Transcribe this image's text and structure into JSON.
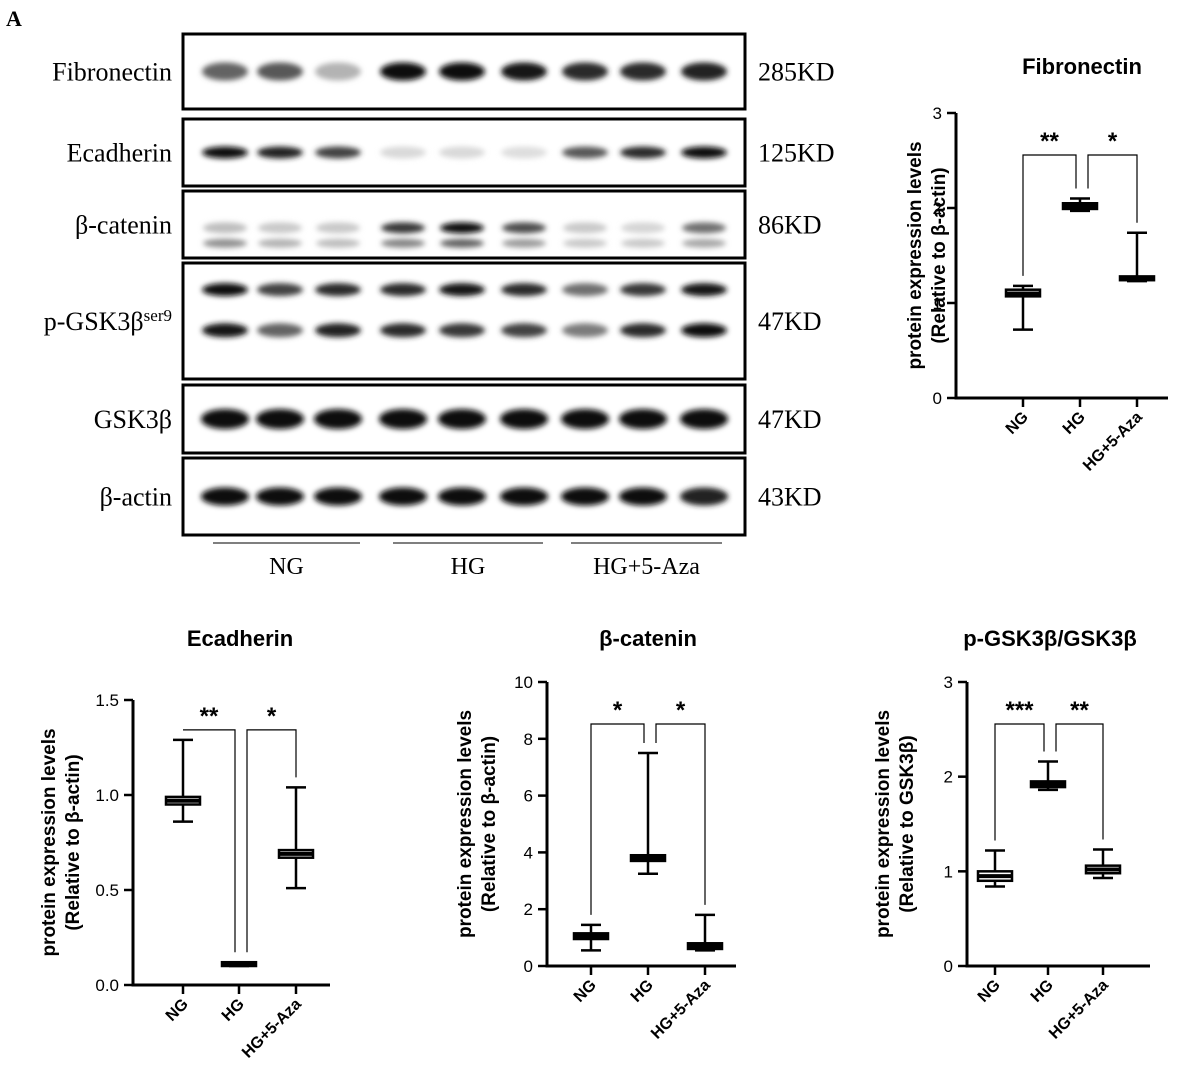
{
  "panel_label": "A",
  "blot": {
    "proteins": [
      {
        "name": "Fibronectin",
        "sup": "",
        "kd": "285KD"
      },
      {
        "name": "Ecadherin",
        "sup": "",
        "kd": "125KD"
      },
      {
        "name": "β-catenin",
        "sup": "",
        "kd": "86KD"
      },
      {
        "name": "p-GSK3β",
        "sup": "ser9",
        "kd": "47KD"
      },
      {
        "name": "GSK3β",
        "sup": "",
        "kd": "47KD"
      },
      {
        "name": "β-actin",
        "sup": "",
        "kd": "43KD"
      }
    ],
    "groups": [
      "NG",
      "HG",
      "HG+5-Aza"
    ],
    "lanes_per_group": 3
  },
  "chart_data": [
    {
      "type": "box",
      "title": "Fibronectin",
      "ylabel": [
        "protein expression levels",
        "(Relative to β-actin)"
      ],
      "ylim": [
        0,
        3
      ],
      "yticks": [
        "0",
        "1",
        "2",
        "3"
      ],
      "categories": [
        "NG",
        "HG",
        "HG+5-Aza"
      ],
      "series": [
        {
          "min": 0.72,
          "q1": 1.07,
          "median": 1.1,
          "q3": 1.14,
          "max": 1.18
        },
        {
          "min": 1.97,
          "q1": 1.99,
          "median": 2.02,
          "q3": 2.05,
          "max": 2.1
        },
        {
          "min": 1.23,
          "q1": 1.24,
          "median": 1.26,
          "q3": 1.28,
          "max": 1.74
        }
      ],
      "significance": [
        {
          "from": 0,
          "to": 1,
          "label": "**"
        },
        {
          "from": 1,
          "to": 2,
          "label": "*"
        }
      ]
    },
    {
      "type": "box",
      "title": "Ecadherin",
      "ylabel": [
        "protein expression levels",
        "(Relative to β-actin)"
      ],
      "ylim": [
        0,
        1.5
      ],
      "yticks": [
        "0.0",
        "0.5",
        "1.0",
        "1.5"
      ],
      "categories": [
        "NG",
        "HG",
        "HG+5-Aza"
      ],
      "series": [
        {
          "min": 0.86,
          "q1": 0.95,
          "median": 0.97,
          "q3": 0.99,
          "max": 1.29
        },
        {
          "min": 0.1,
          "q1": 0.1,
          "median": 0.11,
          "q3": 0.12,
          "max": 0.12
        },
        {
          "min": 0.51,
          "q1": 0.67,
          "median": 0.69,
          "q3": 0.71,
          "max": 1.04
        }
      ],
      "significance": [
        {
          "from": 0,
          "to": 1,
          "label": "**"
        },
        {
          "from": 1,
          "to": 2,
          "label": "*"
        }
      ]
    },
    {
      "type": "box",
      "title": "β-catenin",
      "ylabel": [
        "protein expression levels",
        "(Relative to β-actin)"
      ],
      "ylim": [
        0,
        10
      ],
      "yticks": [
        "0",
        "2",
        "4",
        "6",
        "8",
        "10"
      ],
      "categories": [
        "NG",
        "HG",
        "HG+5-Aza"
      ],
      "series": [
        {
          "min": 0.55,
          "q1": 0.95,
          "median": 1.05,
          "q3": 1.15,
          "max": 1.45
        },
        {
          "min": 3.25,
          "q1": 3.7,
          "median": 3.8,
          "q3": 3.9,
          "max": 7.5
        },
        {
          "min": 0.55,
          "q1": 0.6,
          "median": 0.7,
          "q3": 0.8,
          "max": 1.8
        }
      ],
      "significance": [
        {
          "from": 0,
          "to": 1,
          "label": "*"
        },
        {
          "from": 1,
          "to": 2,
          "label": "*"
        }
      ]
    },
    {
      "type": "box",
      "title": "p-GSK3β/GSK3β",
      "ylabel": [
        "protein expression levels",
        "(Relative to GSK3β)"
      ],
      "ylim": [
        0,
        3
      ],
      "yticks": [
        "0",
        "1",
        "2",
        "3"
      ],
      "categories": [
        "NG",
        "HG",
        "HG+5-Aza"
      ],
      "series": [
        {
          "min": 0.84,
          "q1": 0.9,
          "median": 0.95,
          "q3": 1.0,
          "max": 1.22
        },
        {
          "min": 1.86,
          "q1": 1.89,
          "median": 1.92,
          "q3": 1.95,
          "max": 2.16
        },
        {
          "min": 0.93,
          "q1": 0.98,
          "median": 1.02,
          "q3": 1.06,
          "max": 1.23
        }
      ],
      "significance": [
        {
          "from": 0,
          "to": 1,
          "label": "***"
        },
        {
          "from": 1,
          "to": 2,
          "label": "**"
        }
      ]
    }
  ]
}
